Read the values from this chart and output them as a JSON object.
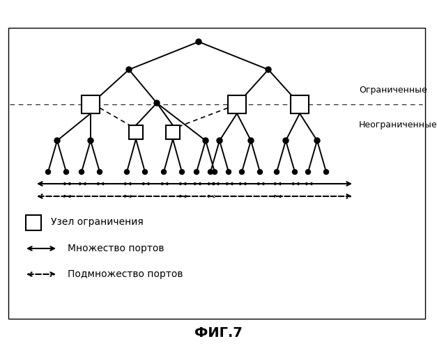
{
  "title": "ФИГ.7",
  "label_restricted": "Ограниченные",
  "label_unrestricted": "Неограниченные",
  "legend_box_text": "Узел ограничения",
  "legend_solid_text": "Множество портов",
  "legend_dashed_text": "Подмножество портов",
  "bg_color": "#ffffff",
  "node_color": "#000000",
  "line_color": "#000000",
  "fig_width": 6.27,
  "fig_height": 5.0,
  "dpi": 100
}
